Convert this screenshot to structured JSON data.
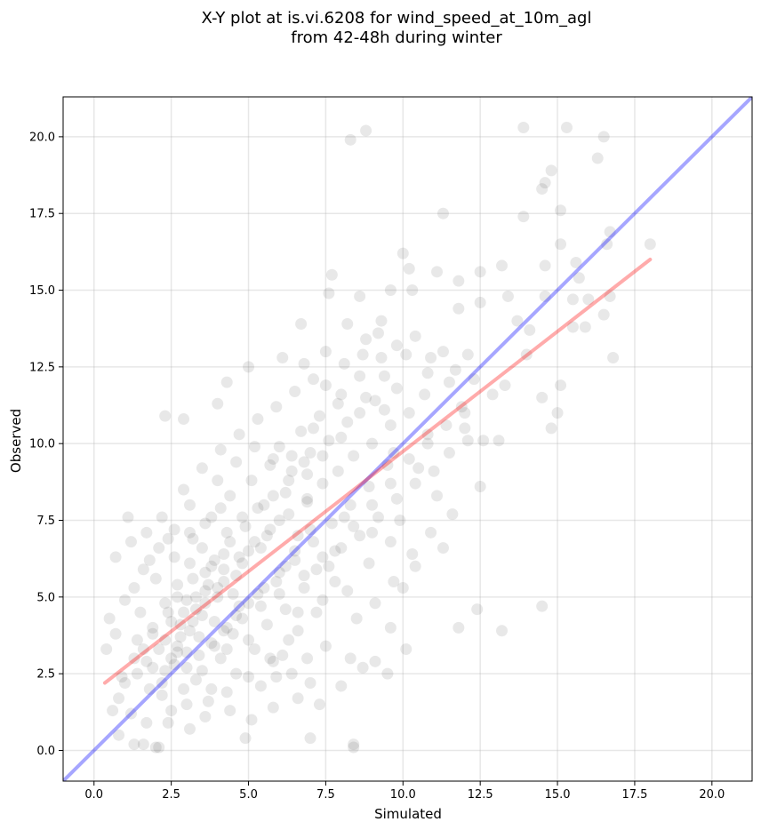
{
  "chart_data": {
    "type": "scatter",
    "title": [
      "X-Y plot at is.vi.6208 for wind_speed_at_10m_agl",
      "from 42-48h during winter"
    ],
    "xlabel": "Simulated",
    "ylabel": "Observed",
    "xlim": [
      -1.0,
      21.3
    ],
    "ylim": [
      -1.0,
      21.3
    ],
    "xticks": [
      0.0,
      2.5,
      5.0,
      7.5,
      10.0,
      12.5,
      15.0,
      17.5,
      20.0
    ],
    "yticks": [
      0.0,
      2.5,
      5.0,
      7.5,
      10.0,
      12.5,
      15.0,
      17.5,
      20.0
    ],
    "xtick_labels": [
      "0.0",
      "2.5",
      "5.0",
      "7.5",
      "10.0",
      "12.5",
      "15.0",
      "17.5",
      "20.0"
    ],
    "ytick_labels": [
      "0.0",
      "2.5",
      "5.0",
      "7.5",
      "10.0",
      "12.5",
      "15.0",
      "17.5",
      "20.0"
    ],
    "grid": true,
    "point_color": "#000000",
    "point_alpha": 0.09,
    "identity_line": {
      "x": [
        -1.0,
        21.3
      ],
      "y": [
        -1.0,
        21.3
      ],
      "color": "#0000ff",
      "alpha": 0.35
    },
    "fit_line": {
      "x": [
        0.35,
        18.0
      ],
      "y": [
        2.2,
        16.0
      ],
      "color": "#ff0000",
      "alpha": 0.33
    },
    "points": [
      [
        8.3,
        19.9
      ],
      [
        8.8,
        20.2
      ],
      [
        13.9,
        20.3
      ],
      [
        15.3,
        20.3
      ],
      [
        16.5,
        20.0
      ],
      [
        16.3,
        19.3
      ],
      [
        14.8,
        18.9
      ],
      [
        14.6,
        18.5
      ],
      [
        14.5,
        18.3
      ],
      [
        11.3,
        17.5
      ],
      [
        13.9,
        17.4
      ],
      [
        15.1,
        17.6
      ],
      [
        16.7,
        16.9
      ],
      [
        16.6,
        16.5
      ],
      [
        15.1,
        16.5
      ],
      [
        18.0,
        16.5
      ],
      [
        7.7,
        15.5
      ],
      [
        10.0,
        16.2
      ],
      [
        10.2,
        15.7
      ],
      [
        11.1,
        15.6
      ],
      [
        12.5,
        15.6
      ],
      [
        13.2,
        15.8
      ],
      [
        14.6,
        15.8
      ],
      [
        15.6,
        15.9
      ],
      [
        15.7,
        15.4
      ],
      [
        10.3,
        15.0
      ],
      [
        9.6,
        15.0
      ],
      [
        7.6,
        14.9
      ],
      [
        8.6,
        14.8
      ],
      [
        11.8,
        15.3
      ],
      [
        13.4,
        14.8
      ],
      [
        14.6,
        14.8
      ],
      [
        16.7,
        14.8
      ],
      [
        15.5,
        14.7
      ],
      [
        16.0,
        14.7
      ],
      [
        16.5,
        14.2
      ],
      [
        15.9,
        13.8
      ],
      [
        15.5,
        13.8
      ],
      [
        14.1,
        13.7
      ],
      [
        13.7,
        14.0
      ],
      [
        12.5,
        14.6
      ],
      [
        11.8,
        14.4
      ],
      [
        6.7,
        13.9
      ],
      [
        8.2,
        13.9
      ],
      [
        9.3,
        14.0
      ],
      [
        12.1,
        12.9
      ],
      [
        11.3,
        13.0
      ],
      [
        14.0,
        12.9
      ],
      [
        16.8,
        12.8
      ],
      [
        13.3,
        11.9
      ],
      [
        15.1,
        11.9
      ],
      [
        14.5,
        11.5
      ],
      [
        15.0,
        11.0
      ],
      [
        14.8,
        10.5
      ],
      [
        12.1,
        10.1
      ],
      [
        12.6,
        10.1
      ],
      [
        13.1,
        10.1
      ],
      [
        12.5,
        8.6
      ],
      [
        14.5,
        4.7
      ],
      [
        12.4,
        4.6
      ],
      [
        13.2,
        3.9
      ],
      [
        11.8,
        4.0
      ],
      [
        10.1,
        3.3
      ],
      [
        9.6,
        4.0
      ],
      [
        9.5,
        2.5
      ],
      [
        8.7,
        2.7
      ],
      [
        8.3,
        3.0
      ],
      [
        9.1,
        2.9
      ],
      [
        8.4,
        0.1
      ],
      [
        8.4,
        0.2
      ],
      [
        7.0,
        0.4
      ],
      [
        4.9,
        0.4
      ],
      [
        2.0,
        0.1
      ],
      [
        2.1,
        0.1
      ],
      [
        1.6,
        0.2
      ],
      [
        1.3,
        0.2
      ],
      [
        0.8,
        0.5
      ],
      [
        0.9,
        2.4
      ],
      [
        0.6,
        1.3
      ],
      [
        0.4,
        3.3
      ],
      [
        0.5,
        4.3
      ],
      [
        0.7,
        6.3
      ],
      [
        1.2,
        6.8
      ],
      [
        1.1,
        7.6
      ],
      [
        2.3,
        10.9
      ],
      [
        2.9,
        10.8
      ],
      [
        4.0,
        11.3
      ],
      [
        5.0,
        12.5
      ],
      [
        4.3,
        12.0
      ],
      [
        6.1,
        12.8
      ],
      [
        6.8,
        12.6
      ],
      [
        7.5,
        13.0
      ],
      [
        8.7,
        12.9
      ],
      [
        9.3,
        12.8
      ],
      [
        10.1,
        12.9
      ],
      [
        10.8,
        12.3
      ],
      [
        11.7,
        12.4
      ],
      [
        12.3,
        12.1
      ],
      [
        12.9,
        11.6
      ],
      [
        11.9,
        11.2
      ],
      [
        10.8,
        10.3
      ],
      [
        11.5,
        9.7
      ],
      [
        12.0,
        10.5
      ],
      [
        9.7,
        9.7
      ],
      [
        10.5,
        9.2
      ],
      [
        11.1,
        8.3
      ],
      [
        11.6,
        7.7
      ],
      [
        10.9,
        7.1
      ],
      [
        11.3,
        6.6
      ],
      [
        10.3,
        6.4
      ],
      [
        10.0,
        5.3
      ],
      [
        9.6,
        6.8
      ],
      [
        8.9,
        6.1
      ],
      [
        9.0,
        7.1
      ],
      [
        9.9,
        7.5
      ],
      [
        8.1,
        7.6
      ],
      [
        7.6,
        6.0
      ],
      [
        7.8,
        5.5
      ],
      [
        7.2,
        4.5
      ],
      [
        6.6,
        3.9
      ],
      [
        6.1,
        3.1
      ],
      [
        5.9,
        2.4
      ],
      [
        5.4,
        2.1
      ],
      [
        4.6,
        2.5
      ],
      [
        3.8,
        2.0
      ],
      [
        3.0,
        1.5
      ],
      [
        2.5,
        1.3
      ],
      [
        2.2,
        1.8
      ],
      [
        1.9,
        2.7
      ],
      [
        1.6,
        3.3
      ],
      [
        1.3,
        3.0
      ],
      [
        1.0,
        2.2
      ],
      [
        0.8,
        1.7
      ],
      [
        1.5,
        4.5
      ],
      [
        2.0,
        5.6
      ],
      [
        2.6,
        6.3
      ],
      [
        3.2,
        6.9
      ],
      [
        3.6,
        5.8
      ],
      [
        4.2,
        6.4
      ],
      [
        4.9,
        7.3
      ],
      [
        5.5,
        8.0
      ],
      [
        6.2,
        8.4
      ],
      [
        6.9,
        9.0
      ],
      [
        7.4,
        9.6
      ],
      [
        8.0,
        10.2
      ],
      [
        8.6,
        11.0
      ],
      [
        9.1,
        11.4
      ],
      [
        9.8,
        11.8
      ],
      [
        7.9,
        11.3
      ],
      [
        7.1,
        10.5
      ],
      [
        6.4,
        9.6
      ],
      [
        5.7,
        9.3
      ],
      [
        5.1,
        8.8
      ],
      [
        4.4,
        8.3
      ],
      [
        3.8,
        7.6
      ],
      [
        3.1,
        7.1
      ],
      [
        2.4,
        6.9
      ],
      [
        1.8,
        6.2
      ],
      [
        2.7,
        5.0
      ],
      [
        3.3,
        4.6
      ],
      [
        3.9,
        4.2
      ],
      [
        4.5,
        3.8
      ],
      [
        5.2,
        3.3
      ],
      [
        5.8,
        2.9
      ],
      [
        6.4,
        2.5
      ],
      [
        7.0,
        2.2
      ],
      [
        3.0,
        3.2
      ],
      [
        3.4,
        3.7
      ],
      [
        2.8,
        4.1
      ],
      [
        2.3,
        3.6
      ],
      [
        2.6,
        2.8
      ],
      [
        3.5,
        2.6
      ],
      [
        4.1,
        3.0
      ],
      [
        4.7,
        4.7
      ],
      [
        5.3,
        5.1
      ],
      [
        5.9,
        5.5
      ],
      [
        6.5,
        6.2
      ],
      [
        7.1,
        6.8
      ],
      [
        7.7,
        7.4
      ],
      [
        8.3,
        8.0
      ],
      [
        8.9,
        8.6
      ],
      [
        9.5,
        9.3
      ],
      [
        6.0,
        7.5
      ],
      [
        6.6,
        7.0
      ],
      [
        5.4,
        6.6
      ],
      [
        4.8,
        6.1
      ],
      [
        4.2,
        5.5
      ],
      [
        3.6,
        5.2
      ],
      [
        3.0,
        4.9
      ],
      [
        2.4,
        4.5
      ],
      [
        1.9,
        4.0
      ],
      [
        1.4,
        3.6
      ],
      [
        2.2,
        2.2
      ],
      [
        2.9,
        2.0
      ],
      [
        3.7,
        1.6
      ],
      [
        4.4,
        1.3
      ],
      [
        5.1,
        1.0
      ],
      [
        5.8,
        1.4
      ],
      [
        6.6,
        1.7
      ],
      [
        7.3,
        1.5
      ],
      [
        8.0,
        2.1
      ],
      [
        7.5,
        3.4
      ],
      [
        6.9,
        3.0
      ],
      [
        8.5,
        4.3
      ],
      [
        9.1,
        4.8
      ],
      [
        9.7,
        5.5
      ],
      [
        10.4,
        6.0
      ],
      [
        8.2,
        5.2
      ],
      [
        7.4,
        4.9
      ],
      [
        6.8,
        5.3
      ],
      [
        6.2,
        4.6
      ],
      [
        5.6,
        4.1
      ],
      [
        5.0,
        3.6
      ],
      [
        4.3,
        3.3
      ],
      [
        3.3,
        2.3
      ],
      [
        2.7,
        3.4
      ],
      [
        3.2,
        5.6
      ],
      [
        3.8,
        6.0
      ],
      [
        4.4,
        6.8
      ],
      [
        5.0,
        6.5
      ],
      [
        5.6,
        7.0
      ],
      [
        6.2,
        6.0
      ],
      [
        6.8,
        5.7
      ],
      [
        7.4,
        6.3
      ],
      [
        8.0,
        6.6
      ],
      [
        8.6,
        7.0
      ],
      [
        9.2,
        7.6
      ],
      [
        9.8,
        8.2
      ],
      [
        10.4,
        8.7
      ],
      [
        11.0,
        9.1
      ],
      [
        3.5,
        9.2
      ],
      [
        4.1,
        9.8
      ],
      [
        4.7,
        10.3
      ],
      [
        5.3,
        10.8
      ],
      [
        5.9,
        11.2
      ],
      [
        6.5,
        11.7
      ],
      [
        7.1,
        12.1
      ],
      [
        4.0,
        8.8
      ],
      [
        2.9,
        8.5
      ],
      [
        2.2,
        7.6
      ],
      [
        1.7,
        7.1
      ],
      [
        1.3,
        5.3
      ],
      [
        1.0,
        4.9
      ],
      [
        0.7,
        3.8
      ],
      [
        1.2,
        1.2
      ],
      [
        1.7,
        0.9
      ],
      [
        2.4,
        0.9
      ],
      [
        3.1,
        0.7
      ],
      [
        3.6,
        1.1
      ],
      [
        4.3,
        1.9
      ],
      [
        5.0,
        2.4
      ],
      [
        5.7,
        3.0
      ],
      [
        6.3,
        3.6
      ],
      [
        6.0,
        9.9
      ],
      [
        6.7,
        10.4
      ],
      [
        7.3,
        10.9
      ],
      [
        7.9,
        9.1
      ],
      [
        8.4,
        9.6
      ],
      [
        9.0,
        10.0
      ],
      [
        9.6,
        10.6
      ],
      [
        10.2,
        11.0
      ],
      [
        10.7,
        11.6
      ],
      [
        9.4,
        12.2
      ],
      [
        8.8,
        13.4
      ],
      [
        8.1,
        12.6
      ],
      [
        7.5,
        11.9
      ],
      [
        6.9,
        8.2
      ],
      [
        6.3,
        8.8
      ],
      [
        5.8,
        9.5
      ],
      [
        5.2,
        9.9
      ],
      [
        4.6,
        9.4
      ],
      [
        4.1,
        7.9
      ],
      [
        3.6,
        7.4
      ],
      [
        3.1,
        8.0
      ],
      [
        2.6,
        7.2
      ],
      [
        2.1,
        6.6
      ],
      [
        1.6,
        5.9
      ],
      [
        4.6,
        5.7
      ],
      [
        4.0,
        5.0
      ],
      [
        3.5,
        4.4
      ],
      [
        3.1,
        3.9
      ],
      [
        2.7,
        3.2
      ],
      [
        2.3,
        2.6
      ],
      [
        1.8,
        2.0
      ],
      [
        3.9,
        3.4
      ],
      [
        4.3,
        4.0
      ],
      [
        4.8,
        4.3
      ],
      [
        5.4,
        4.7
      ],
      [
        6.0,
        5.1
      ],
      [
        6.6,
        4.5
      ],
      [
        7.2,
        5.9
      ],
      [
        7.8,
        6.5
      ],
      [
        8.4,
        7.3
      ],
      [
        9.0,
        8.0
      ],
      [
        9.6,
        8.7
      ],
      [
        10.2,
        9.5
      ],
      [
        10.8,
        10.0
      ],
      [
        11.4,
        10.6
      ],
      [
        12.0,
        11.0
      ],
      [
        11.5,
        12.0
      ],
      [
        10.9,
        12.8
      ],
      [
        10.4,
        13.5
      ],
      [
        9.8,
        13.2
      ],
      [
        9.2,
        13.6
      ],
      [
        8.6,
        12.2
      ],
      [
        8.0,
        11.6
      ],
      [
        7.4,
        8.7
      ],
      [
        6.8,
        9.4
      ],
      [
        2.5,
        4.2
      ],
      [
        2.9,
        4.5
      ],
      [
        3.3,
        5.0
      ],
      [
        3.7,
        5.4
      ],
      [
        4.2,
        5.9
      ],
      [
        4.7,
        6.3
      ],
      [
        5.2,
        6.8
      ],
      [
        5.7,
        7.2
      ],
      [
        6.3,
        7.7
      ],
      [
        6.9,
        8.1
      ],
      [
        3.0,
        2.7
      ],
      [
        3.4,
        3.1
      ],
      [
        3.8,
        3.5
      ],
      [
        4.2,
        3.9
      ],
      [
        4.6,
        4.4
      ],
      [
        5.0,
        4.8
      ],
      [
        5.5,
        5.3
      ],
      [
        6.0,
        5.8
      ],
      [
        6.5,
        6.5
      ],
      [
        7.0,
        7.2
      ],
      [
        2.8,
        3.7
      ],
      [
        3.2,
        4.2
      ],
      [
        3.6,
        4.8
      ],
      [
        4.0,
        5.3
      ],
      [
        4.5,
        5.1
      ],
      [
        2.5,
        3.0
      ],
      [
        2.1,
        3.3
      ],
      [
        1.7,
        2.9
      ],
      [
        1.4,
        2.5
      ],
      [
        1.9,
        3.8
      ],
      [
        2.3,
        4.8
      ],
      [
        2.7,
        5.4
      ],
      [
        3.1,
        6.1
      ],
      [
        3.5,
        6.6
      ],
      [
        3.9,
        6.2
      ],
      [
        4.3,
        7.1
      ],
      [
        4.8,
        7.6
      ],
      [
        5.3,
        7.9
      ],
      [
        5.8,
        8.3
      ],
      [
        6.4,
        9.1
      ],
      [
        7.0,
        9.7
      ],
      [
        7.6,
        10.1
      ],
      [
        8.2,
        10.7
      ],
      [
        8.8,
        11.5
      ],
      [
        9.4,
        11.1
      ]
    ]
  }
}
